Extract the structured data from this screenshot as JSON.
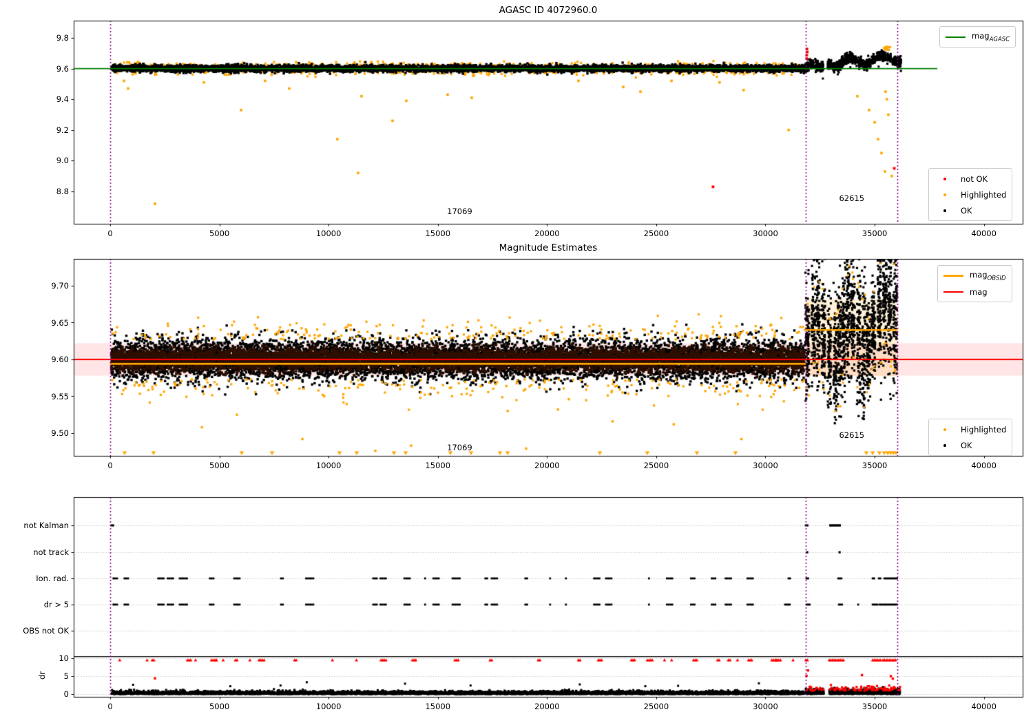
{
  "figure": {
    "background": "#ffffff"
  },
  "colors": {
    "ok": "#000000",
    "highlighted": "#ffa500",
    "not_ok": "#ff0000",
    "mag_agasc": "#008000",
    "mag": "#ff0000",
    "mag_obsid": "#ffa500",
    "interval_vline": "#8b008b",
    "err_band_red": "rgba(255,0,0,0.10)",
    "obsid_band_orange": "rgba(255,165,0,0.15)",
    "dense_core": "#2e0f00",
    "grid": "#b3b3b3",
    "legend_border": "#cccccc"
  },
  "x_axis": {
    "tick_labels": [
      "0",
      "5000",
      "10000",
      "15000",
      "20000",
      "25000",
      "30000",
      "35000",
      "40000"
    ],
    "tick_values": [
      0,
      5000,
      10000,
      15000,
      20000,
      25000,
      30000,
      35000,
      40000
    ]
  },
  "intervals": {
    "vline_values": [
      0,
      31850,
      36050
    ]
  },
  "chart_data": [
    {
      "id": "top",
      "type": "scatter",
      "title": "AGASC ID 4072960.0",
      "y_tick_labels": [
        "9.8",
        "9.6",
        "9.4",
        "9.2",
        "9.0",
        "8.8"
      ],
      "y_tick_values": [
        9.8,
        9.6,
        9.4,
        9.2,
        9.0,
        8.8
      ],
      "ylim": [
        8.59,
        9.91
      ],
      "mag_agasc": {
        "value": 9.6,
        "x_span": [
          -1671,
          37870
        ]
      },
      "annotations": [
        {
          "text": "17069",
          "x": 16000,
          "y": 8.672
        },
        {
          "text": "62615",
          "x": 33950,
          "y": 8.756
        }
      ],
      "legend_line": {
        "text": "mag",
        "sub": "AGASC",
        "color": "#008000"
      },
      "legend_markers": [
        {
          "label": "not OK",
          "color": "#ff0000"
        },
        {
          "label": "Highlighted",
          "color": "#ffa500"
        },
        {
          "label": "OK",
          "color": "#000000"
        }
      ],
      "ok_band": {
        "x_range": [
          60,
          31800
        ],
        "mean": 9.601,
        "sigma": 0.0105,
        "n": 6500,
        "seed": 11
      },
      "ok_right": {
        "x_range": [
          31900,
          36200
        ],
        "gap": [
          32660,
          32930
        ],
        "seed": 12,
        "clip": [
          9.54,
          9.785
        ]
      },
      "highlighted_band": {
        "n": 380,
        "offset": 0.018,
        "spread": 0.013,
        "seed": 13
      },
      "highlighted_cluster": {
        "x": 35570,
        "y": 9.732,
        "n": 14,
        "seed": 14
      },
      "highlighted_points": [
        [
          630,
          9.52
        ],
        [
          820,
          9.47
        ],
        [
          2050,
          8.72
        ],
        [
          4290,
          9.51
        ],
        [
          5990,
          9.33
        ],
        [
          7094,
          9.52
        ],
        [
          8197,
          9.47
        ],
        [
          10400,
          9.14
        ],
        [
          11350,
          8.92
        ],
        [
          11508,
          9.42
        ],
        [
          12927,
          9.26
        ],
        [
          13557,
          9.39
        ],
        [
          15450,
          9.43
        ],
        [
          16553,
          9.41
        ],
        [
          21440,
          9.52
        ],
        [
          23490,
          9.48
        ],
        [
          24280,
          9.45
        ],
        [
          25700,
          9.52
        ],
        [
          27900,
          9.51
        ],
        [
          29000,
          9.46
        ],
        [
          31060,
          9.2
        ],
        [
          34210,
          9.42
        ],
        [
          34745,
          9.33
        ],
        [
          35000,
          9.25
        ],
        [
          35155,
          9.14
        ],
        [
          35313,
          9.05
        ],
        [
          35470,
          8.93
        ],
        [
          35628,
          9.3
        ],
        [
          35786,
          8.9
        ],
        [
          35500,
          9.45
        ],
        [
          35560,
          9.4
        ]
      ],
      "not_ok_points": [
        [
          31890,
          9.665
        ],
        [
          31890,
          9.687
        ],
        [
          31915,
          9.708
        ],
        [
          31900,
          9.728
        ],
        [
          27600,
          8.83
        ],
        [
          35900,
          8.95
        ]
      ]
    },
    {
      "id": "middle",
      "type": "scatter",
      "title": "Magnitude Estimates",
      "y_tick_labels": [
        "9.70",
        "9.65",
        "9.60",
        "9.55",
        "9.50"
      ],
      "y_tick_values": [
        9.7,
        9.65,
        9.6,
        9.55,
        9.5
      ],
      "ylim": [
        9.469,
        9.7365
      ],
      "mag": {
        "value": 9.6,
        "err_band": [
          9.578,
          9.622
        ]
      },
      "mag_obsid": {
        "segments": [
          {
            "x": [
              0,
              31850
            ],
            "value": 9.594
          },
          {
            "x": [
              31850,
              36050
            ],
            "value": 9.64,
            "band": [
              9.577,
              9.682
            ]
          }
        ]
      },
      "annotations": [
        {
          "text": "17069",
          "x": 16000,
          "y": 9.48
        },
        {
          "text": "62615",
          "x": 33950,
          "y": 9.497
        }
      ],
      "legend_lines": [
        {
          "text": "mag",
          "sub": "OBSID",
          "color": "#ffa500",
          "weight": 3
        },
        {
          "text": "mag",
          "sub": "",
          "color": "#ff0000",
          "weight": 2
        }
      ],
      "legend_markers": [
        {
          "label": "Highlighted",
          "color": "#ffa500"
        },
        {
          "label": "OK",
          "color": "#000000"
        }
      ],
      "ok_band": {
        "x_range": [
          60,
          31800
        ],
        "mean": 9.6,
        "sigma": 0.0135,
        "n": 9000,
        "seed": 31,
        "core": {
          "sigma": 0.0068,
          "n": 5200,
          "color": "#2e0f00"
        }
      },
      "ok_streaks": {
        "x_range": [
          31920,
          36160
        ],
        "gap": [
          32660,
          32930
        ],
        "seed": 32,
        "clip": [
          9.505,
          9.737
        ]
      },
      "highlighted_band": {
        "n": 430,
        "offset": 0.027,
        "spread": 0.013,
        "seed": 33
      },
      "highlighted_low_points": [
        [
          4200,
          9.508
        ],
        [
          5800,
          9.525
        ],
        [
          8800,
          9.492
        ],
        [
          9800,
          9.55
        ],
        [
          12140,
          9.476
        ],
        [
          13779,
          9.483
        ],
        [
          19044,
          9.479
        ],
        [
          18200,
          9.53
        ],
        [
          20500,
          9.532
        ],
        [
          21000,
          9.546
        ],
        [
          23000,
          9.516
        ],
        [
          25800,
          9.512
        ],
        [
          28900,
          9.492
        ]
      ],
      "clipped_low_x": [
        662,
        1986,
        6022,
        7410,
        10500,
        11288,
        12991,
        13527,
        15576,
        16522,
        17846,
        18193,
        22416,
        24592,
        26862,
        28628,
        34620,
        34904,
        35219,
        35440,
        35597,
        35723,
        35849,
        35975
      ]
    },
    {
      "id": "bottom",
      "type": "scatter",
      "row_labels": [
        "not Kalman",
        "not track",
        "Ion. rad.",
        "dr > 5",
        "OBS not OK"
      ],
      "dr_axis_label": "dr",
      "dr_tick_labels": [
        "10",
        "5",
        "0"
      ],
      "dr_tick_values": [
        10,
        5,
        0
      ],
      "separator_dr": 10.45,
      "flag_rows": {
        "not_kalman": {
          "dot_ranges": [
            [
              63,
              189
            ],
            [
              31850,
              31976
            ]
          ],
          "dash_ranges": [
            [
              32920,
              33456
            ]
          ]
        },
        "not_track": {
          "points": [
            31913,
            33395
          ]
        },
        "ion_rad": {
          "left": {
            "x_range": [
              150,
              31650
            ],
            "seed": 21,
            "prob": 0.5
          },
          "ranges": [
            [
              31057,
              31151
            ],
            [
              31882,
              31976
            ],
            [
              33332,
              33521
            ],
            [
              34908,
              35003
            ],
            [
              35192,
              35287
            ],
            [
              35444,
              36043
            ]
          ]
        },
        "dr_gt5": {
          "left": {
            "x_range": [
              150,
              31650
            ],
            "seed": 21,
            "prob": 0.5
          },
          "ranges": [
            [
              30899,
              31119
            ],
            [
              31882,
              32039
            ],
            [
              33363,
              33552
            ],
            [
              34246,
              34309
            ],
            [
              34908,
              35129
            ],
            [
              35224,
              35413
            ],
            [
              35444,
              36075
            ]
          ]
        }
      },
      "dr_capped_red": {
        "left": {
          "x_range": [
            150,
            31700
          ],
          "seed": 22,
          "prob": 0.34
        },
        "ranges": [
          [
            31850,
            31945
          ],
          [
            32920,
            33583
          ],
          [
            34908,
            35318
          ],
          [
            35381,
            35975
          ]
        ]
      },
      "dr_band": {
        "left": {
          "x_range": [
            60,
            31800
          ],
          "n": 6000,
          "scale": 0.38,
          "seed": 41
        },
        "right": {
          "x_range": [
            31850,
            36160
          ],
          "n": 1600,
          "scale": 0.55,
          "seed": 42,
          "gap": [
            32660,
            32930
          ]
        },
        "right_red": {
          "n": 95,
          "seed": 43
        },
        "high_points": [
          [
            1050,
            2.6
          ],
          [
            5500,
            2.2
          ],
          [
            7800,
            2.4
          ],
          [
            9000,
            3.3
          ],
          [
            13500,
            2.9
          ],
          [
            16500,
            2.4
          ],
          [
            21500,
            2.7
          ],
          [
            24500,
            2.2
          ],
          [
            26000,
            2.3
          ],
          [
            29700,
            3.0
          ]
        ],
        "red_points": [
          [
            2050,
            4.4
          ],
          [
            31880,
            5.1
          ],
          [
            31950,
            6.6
          ],
          [
            34420,
            5.3
          ],
          [
            35740,
            5.0
          ],
          [
            35830,
            4.3
          ]
        ]
      }
    }
  ]
}
